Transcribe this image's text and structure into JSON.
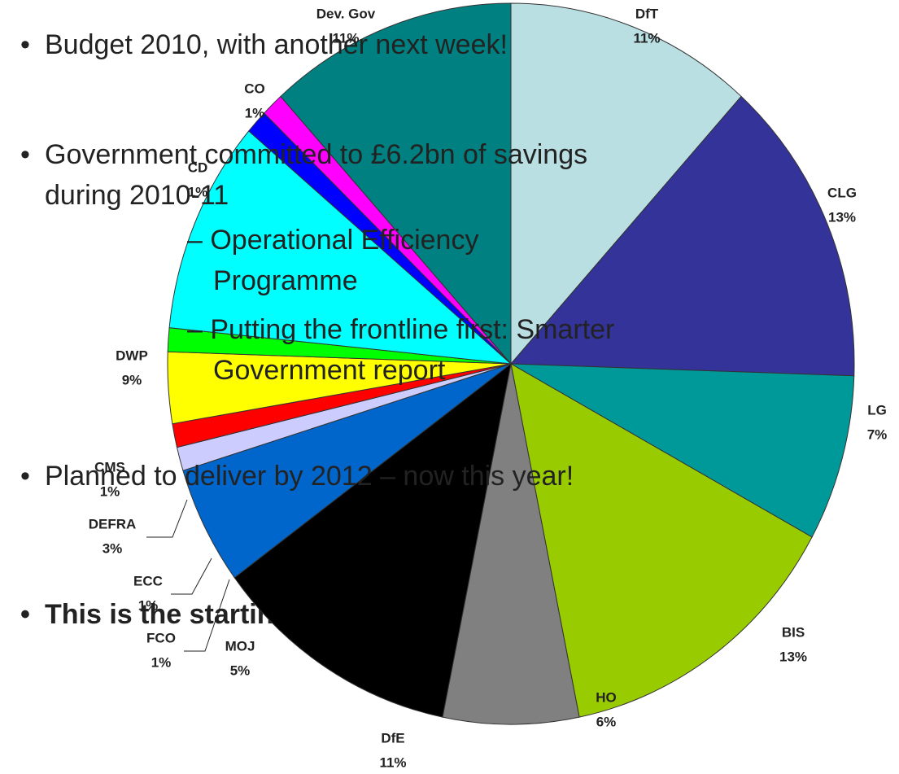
{
  "chart_data": {
    "type": "pie",
    "categories": [
      "DfT",
      "CLG",
      "LG",
      "BIS",
      "HO",
      "DfE",
      "MOJ",
      "FCO",
      "ECC",
      "DEFRA",
      "CMS",
      "DWP",
      "CD",
      "CO",
      "Dev. Gov"
    ],
    "values": [
      11,
      13,
      7,
      13,
      6,
      11,
      5,
      1,
      1,
      3,
      1,
      9,
      1,
      1,
      11
    ],
    "value_labels": [
      "11%",
      "13%",
      "7%",
      "13%",
      "6%",
      "11%",
      "5%",
      "1%",
      "1%",
      "3%",
      "1%",
      "9%",
      "1%",
      "1%",
      "11%"
    ],
    "colors": [
      "#b9dfe2",
      "#333399",
      "#009999",
      "#99cc00",
      "#808080",
      "#000000",
      "#0066cc",
      "#ccccff",
      "#ff0000",
      "#ffff00",
      "#00ff00",
      "#00ffff",
      "#0000ff",
      "#ff00ff",
      "#008080"
    ]
  },
  "bullets": {
    "items": [
      "Budget 2010, with another next week!",
      "Government committed to £6.2bn of savings during 2010-11",
      "Planned to deliver by 2012 – now this year!",
      "This is the starting point"
    ],
    "subitems": [
      "– Operational Efficiency Programme",
      "– Putting the frontline first: Smarter Government report"
    ],
    "marker": "•"
  }
}
